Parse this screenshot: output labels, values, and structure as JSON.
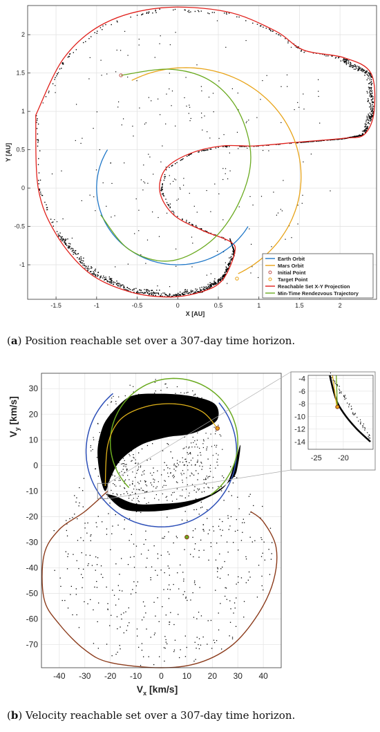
{
  "captions": {
    "a_tag": "a",
    "a_text": "Position reachable set over a 307-day time horizon.",
    "b_tag": "b",
    "b_text": "Velocity reachable set over a 307-day time horizon."
  },
  "chart_data": [
    {
      "type": "scatter",
      "panel": "a",
      "xlabel": "X [AU]",
      "ylabel": "Y [AU]",
      "xlim": [
        -1.85,
        2.45
      ],
      "ylim": [
        -1.45,
        2.38
      ],
      "xticks": [
        -1.5,
        -1,
        -0.5,
        0,
        0.5,
        1,
        1.5,
        2
      ],
      "yticks": [
        -1,
        -0.5,
        0,
        0.5,
        1,
        1.5,
        2
      ],
      "xtick_labels": [
        "-1.5",
        "-1",
        "-0.5",
        "0",
        "0.5",
        "1",
        "1.5",
        "2"
      ],
      "ytick_labels": [
        "-1",
        "-0.5",
        "0",
        "0.5",
        "1",
        "1.5",
        "2"
      ],
      "grid": true,
      "legend_position": "bottom-right",
      "legend": [
        {
          "label": "Earth Orbit",
          "color": "#1f77c8",
          "marker": "line"
        },
        {
          "label": "Mars Orbit",
          "color": "#e8a317",
          "marker": "line"
        },
        {
          "label": "Initial Point",
          "color": "#c0504d",
          "marker": "circle"
        },
        {
          "label": "Target Point",
          "color": "#e8a317",
          "marker": "circle"
        },
        {
          "label": "Reachable Set X-Y Projection",
          "color": "#e0201b",
          "marker": "line"
        },
        {
          "label": "Min-Time Rendezvous Trajectory",
          "color": "#6aaa1f",
          "marker": "line"
        }
      ],
      "earth_orbit": {
        "center": [
          0,
          0
        ],
        "radius": 1.0,
        "theta_range_deg": [
          150,
          330
        ]
      },
      "mars_orbit": {
        "center": [
          0.1,
          0.15
        ],
        "radius": 1.42,
        "theta_range_deg": [
          -63,
          118
        ]
      },
      "initial_point": [
        -0.7,
        1.47
      ],
      "target_point": [
        0.73,
        -1.18
      ],
      "rendezvous_trajectory": [
        [
          -0.95,
          -0.35
        ],
        [
          -0.6,
          -0.8
        ],
        [
          -0.1,
          -0.95
        ],
        [
          0.4,
          -0.7
        ],
        [
          0.75,
          -0.2
        ],
        [
          0.9,
          0.4
        ],
        [
          0.75,
          1.0
        ],
        [
          0.4,
          1.4
        ],
        [
          -0.1,
          1.55
        ],
        [
          -0.7,
          1.47
        ]
      ],
      "reachable_boundary": [
        [
          -1.75,
          0.95
        ],
        [
          -1.4,
          1.7
        ],
        [
          -0.9,
          2.15
        ],
        [
          -0.2,
          2.35
        ],
        [
          0.6,
          2.3
        ],
        [
          1.2,
          2.05
        ],
        [
          1.55,
          1.8
        ],
        [
          2.05,
          1.7
        ],
        [
          2.38,
          1.5
        ],
        [
          2.42,
          1.0
        ],
        [
          2.3,
          0.7
        ],
        [
          2.05,
          0.65
        ],
        [
          1.5,
          0.6
        ],
        [
          0.95,
          0.55
        ],
        [
          0.55,
          0.55
        ],
        [
          0.15,
          0.45
        ],
        [
          -0.15,
          0.25
        ],
        [
          -0.22,
          -0.05
        ],
        [
          -0.05,
          -0.35
        ],
        [
          0.3,
          -0.55
        ],
        [
          0.65,
          -0.7
        ],
        [
          0.7,
          -0.85
        ],
        [
          0.55,
          -1.2
        ],
        [
          0.3,
          -1.35
        ],
        [
          -0.1,
          -1.42
        ],
        [
          -0.6,
          -1.35
        ],
        [
          -1.1,
          -1.1
        ],
        [
          -1.5,
          -0.6
        ],
        [
          -1.72,
          0.0
        ],
        [
          -1.75,
          0.95
        ]
      ]
    },
    {
      "type": "scatter",
      "panel": "b",
      "xlabel_main": "V",
      "xlabel_sub": "x",
      "xlabel_unit": "[km/s]",
      "ylabel_main": "V",
      "ylabel_sub": "y",
      "ylabel_unit": "[km/s]",
      "xlim": [
        -47,
        47
      ],
      "ylim": [
        -79,
        36
      ],
      "xticks": [
        -40,
        -30,
        -20,
        -10,
        0,
        10,
        20,
        30,
        40
      ],
      "yticks": [
        30,
        20,
        10,
        0,
        -10,
        -20,
        -30,
        -40,
        -50,
        -60,
        -70
      ],
      "xtick_labels": [
        "-40",
        "-30",
        "-20",
        "-10",
        "0",
        "10",
        "20",
        "30",
        "40"
      ],
      "ytick_labels": [
        "30",
        "20",
        "10",
        "0",
        "-10",
        "-20",
        "-30",
        "-40",
        "-50",
        "-60",
        "-70"
      ],
      "grid": true,
      "inset": {
        "xlim": [
          -26.5,
          -14.5
        ],
        "ylim": [
          -15.2,
          -3.5
        ],
        "xticks": [
          -25,
          -20
        ],
        "xtick_labels": [
          "-25",
          "-20"
        ],
        "yticks": [
          -4,
          -6,
          -8,
          -10,
          -12,
          -14
        ],
        "ytick_labels": [
          "-4",
          "-6",
          "-8",
          "-10",
          "-12",
          "-14"
        ],
        "zoom_box": {
          "x": [
            -25,
            -21
          ],
          "y": [
            -13,
            -7
          ]
        }
      },
      "earth_orbit": {
        "center": [
          0,
          5.5
        ],
        "radius": 29.5,
        "theta_range_deg": [
          130,
          400
        ]
      },
      "mars_orbit": {
        "center": [
          5,
          9
        ],
        "radius": 25,
        "theta_range_deg": [
          -55,
          225
        ]
      },
      "initial_point": [
        22,
        14.5
      ],
      "target_point": [
        10,
        -28
      ],
      "lower_boundary": [
        [
          -21,
          -10
        ],
        [
          -30,
          -18
        ],
        [
          -40,
          -25
        ],
        [
          -46,
          -35
        ],
        [
          -46,
          -52
        ],
        [
          -40,
          -62
        ],
        [
          -30,
          -72
        ],
        [
          -20,
          -77
        ],
        [
          0,
          -79
        ],
        [
          15,
          -77
        ],
        [
          28,
          -70
        ],
        [
          38,
          -58
        ],
        [
          44,
          -45
        ],
        [
          45,
          -32
        ],
        [
          40,
          -22
        ],
        [
          35,
          -18
        ]
      ]
    }
  ]
}
